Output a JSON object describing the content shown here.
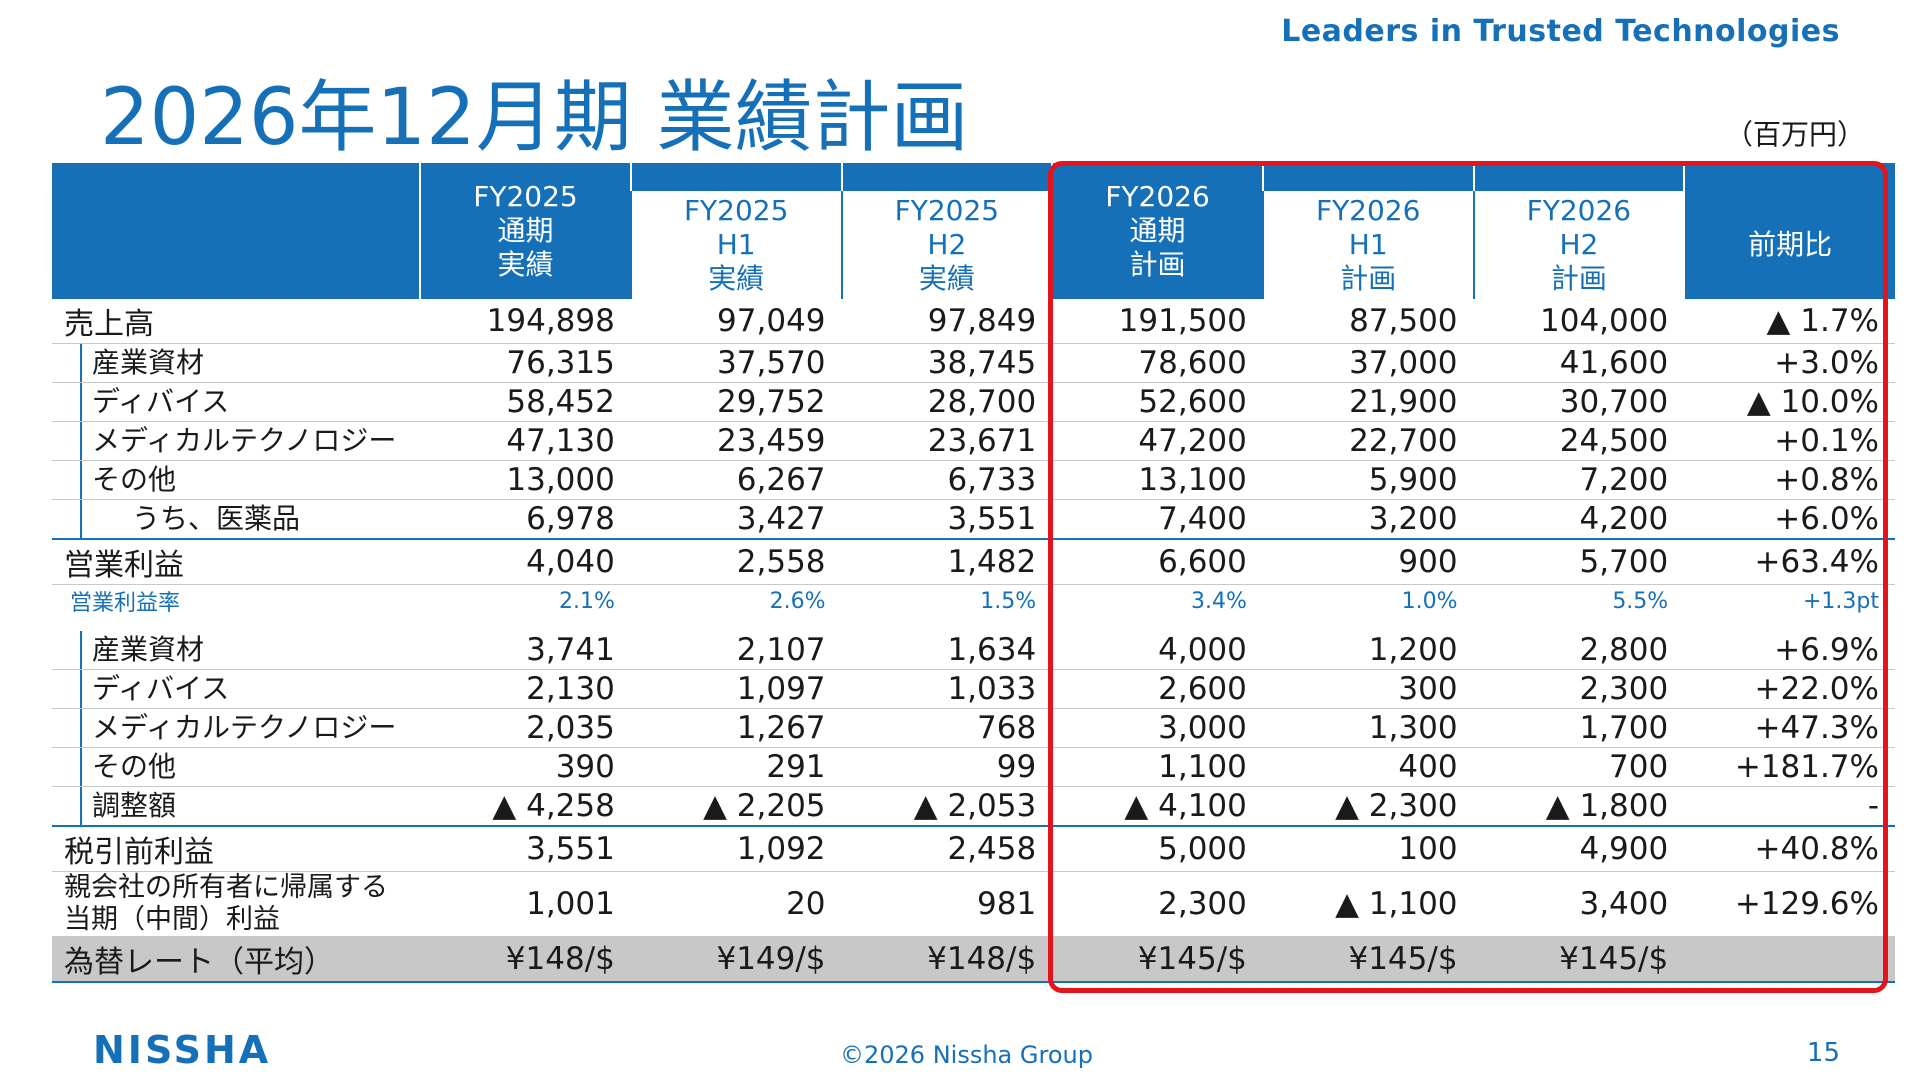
{
  "header": {
    "tagline": "Leaders in Trusted Technologies",
    "title": "2026年12月期 業績計画",
    "unit": "（百万円）"
  },
  "table": {
    "columns": [
      {
        "line1": "FY2025",
        "line2": "通期",
        "line3": "実績"
      },
      {
        "line1": "FY2025",
        "line2": "H1",
        "line3": "実績"
      },
      {
        "line1": "FY2025",
        "line2": "H2",
        "line3": "実績"
      },
      {
        "line1": "FY2026",
        "line2": "通期",
        "line3": "計画"
      },
      {
        "line1": "FY2026",
        "line2": "H1",
        "line3": "計画"
      },
      {
        "line1": "FY2026",
        "line2": "H2",
        "line3": "計画"
      },
      {
        "line1": "前期比",
        "line2": "",
        "line3": ""
      }
    ],
    "rows": [
      {
        "label": "売上高",
        "values": [
          "194,898",
          "97,049",
          "97,849",
          "191,500",
          "87,500",
          "104,000",
          "▲ 1.7%"
        ]
      },
      {
        "label": "産業資材",
        "values": [
          "76,315",
          "37,570",
          "38,745",
          "78,600",
          "37,000",
          "41,600",
          "+3.0%"
        ]
      },
      {
        "label": "ディバイス",
        "values": [
          "58,452",
          "29,752",
          "28,700",
          "52,600",
          "21,900",
          "30,700",
          "▲ 10.0%"
        ]
      },
      {
        "label": "メディカルテクノロジー",
        "values": [
          "47,130",
          "23,459",
          "23,671",
          "47,200",
          "22,700",
          "24,500",
          "+0.1%"
        ]
      },
      {
        "label": "その他",
        "values": [
          "13,000",
          "6,267",
          "6,733",
          "13,100",
          "5,900",
          "7,200",
          "+0.8%"
        ]
      },
      {
        "label": "うち、医薬品",
        "values": [
          "6,978",
          "3,427",
          "3,551",
          "7,400",
          "3,200",
          "4,200",
          "+6.0%"
        ]
      },
      {
        "label": "営業利益",
        "values": [
          "4,040",
          "2,558",
          "1,482",
          "6,600",
          "900",
          "5,700",
          "+63.4%"
        ]
      },
      {
        "label": "営業利益率",
        "values": [
          "2.1%",
          "2.6%",
          "1.5%",
          "3.4%",
          "1.0%",
          "5.5%",
          "+1.3pt"
        ]
      },
      {
        "label": "産業資材",
        "values": [
          "3,741",
          "2,107",
          "1,634",
          "4,000",
          "1,200",
          "2,800",
          "+6.9%"
        ]
      },
      {
        "label": "ディバイス",
        "values": [
          "2,130",
          "1,097",
          "1,033",
          "2,600",
          "300",
          "2,300",
          "+22.0%"
        ]
      },
      {
        "label": "メディカルテクノロジー",
        "values": [
          "2,035",
          "1,267",
          "768",
          "3,000",
          "1,300",
          "1,700",
          "+47.3%"
        ]
      },
      {
        "label": "その他",
        "values": [
          "390",
          "291",
          "99",
          "1,100",
          "400",
          "700",
          "+181.7%"
        ]
      },
      {
        "label": "調整額",
        "values": [
          "▲ 4,258",
          "▲ 2,205",
          "▲ 2,053",
          "▲ 4,100",
          "▲ 2,300",
          "▲ 1,800",
          "-"
        ]
      },
      {
        "label": "税引前利益",
        "values": [
          "3,551",
          "1,092",
          "2,458",
          "5,000",
          "100",
          "4,900",
          "+40.8%"
        ]
      },
      {
        "label": "親会社の所有者に帰属する当期（中間）利益",
        "values": [
          "1,001",
          "20",
          "981",
          "2,300",
          "▲ 1,100",
          "3,400",
          "+129.6%"
        ]
      },
      {
        "label": "為替レート（平均）",
        "values": [
          "¥148/$",
          "¥149/$",
          "¥148/$",
          "¥145/$",
          "¥145/$",
          "¥145/$",
          ""
        ]
      }
    ]
  },
  "footer": {
    "logo": "NISSHA",
    "copyright": "©2026 Nissha Group",
    "page_number": "15"
  },
  "colors": {
    "brand_blue": "#1670b8",
    "highlight_red": "#e3141b",
    "fx_row_gray": "#c8c8c8"
  }
}
